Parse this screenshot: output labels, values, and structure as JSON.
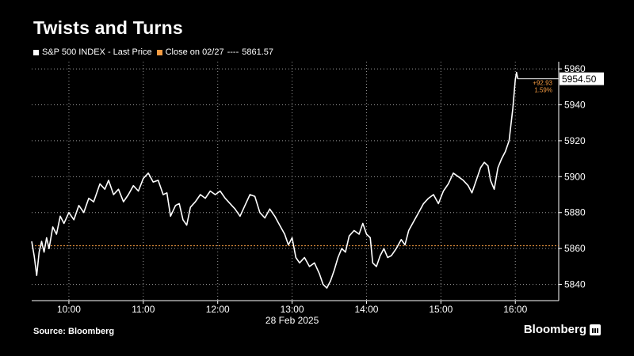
{
  "title": "Twists and Turns",
  "legend": {
    "series_label": "S&P 500 INDEX - Last Price",
    "ref_label": "Close on 02/27",
    "ref_value_label": "5861.57",
    "separator": "----"
  },
  "source": "Source: Bloomberg",
  "brand": "Bloomberg",
  "colors": {
    "background": "#000000",
    "series": "#ffffff",
    "reference": "#f59b42",
    "grid": "#9a9a9a",
    "change": "#f59b42"
  },
  "chart_data": {
    "type": "line",
    "title": "Twists and Turns",
    "x_ticks": [
      "10:00",
      "11:00",
      "12:00",
      "13:00",
      "14:00",
      "15:00",
      "16:00"
    ],
    "x_caption": "28 Feb 2025",
    "xlim": [
      "09:30",
      "16:35"
    ],
    "y_ticks": [
      5840,
      5860,
      5880,
      5900,
      5920,
      5940,
      5960
    ],
    "ylim": [
      5831,
      5964
    ],
    "grid": true,
    "y_axis_side": "right",
    "reference_line": {
      "name": "Close on 02/27",
      "value": 5861.57
    },
    "last_value_label": "5954.50",
    "change_label": "+92.93",
    "change_pct_label": "1.59%",
    "series": [
      {
        "name": "S&P 500 INDEX - Last Price",
        "points": [
          [
            "09:30",
            5864
          ],
          [
            "09:32",
            5856
          ],
          [
            "09:34",
            5845
          ],
          [
            "09:36",
            5858
          ],
          [
            "09:38",
            5864
          ],
          [
            "09:40",
            5858
          ],
          [
            "09:42",
            5866
          ],
          [
            "09:44",
            5860
          ],
          [
            "09:47",
            5872
          ],
          [
            "09:50",
            5868
          ],
          [
            "09:53",
            5878
          ],
          [
            "09:56",
            5874
          ],
          [
            "10:00",
            5880
          ],
          [
            "10:04",
            5876
          ],
          [
            "10:08",
            5884
          ],
          [
            "10:12",
            5880
          ],
          [
            "10:16",
            5888
          ],
          [
            "10:20",
            5886
          ],
          [
            "10:25",
            5896
          ],
          [
            "10:29",
            5893
          ],
          [
            "10:32",
            5898
          ],
          [
            "10:36",
            5890
          ],
          [
            "10:40",
            5893
          ],
          [
            "10:44",
            5886
          ],
          [
            "10:48",
            5890
          ],
          [
            "10:52",
            5895
          ],
          [
            "10:56",
            5892
          ],
          [
            "11:00",
            5899
          ],
          [
            "11:04",
            5902
          ],
          [
            "11:08",
            5897
          ],
          [
            "11:12",
            5898
          ],
          [
            "11:16",
            5890
          ],
          [
            "11:19",
            5891
          ],
          [
            "11:22",
            5878
          ],
          [
            "11:26",
            5884
          ],
          [
            "11:29",
            5885
          ],
          [
            "11:32",
            5876
          ],
          [
            "11:35",
            5873
          ],
          [
            "11:38",
            5883
          ],
          [
            "11:42",
            5886
          ],
          [
            "11:46",
            5890
          ],
          [
            "11:50",
            5888
          ],
          [
            "11:54",
            5892
          ],
          [
            "11:58",
            5890
          ],
          [
            "12:02",
            5892
          ],
          [
            "12:06",
            5888
          ],
          [
            "12:10",
            5885
          ],
          [
            "12:14",
            5882
          ],
          [
            "12:18",
            5878
          ],
          [
            "12:22",
            5884
          ],
          [
            "12:26",
            5890
          ],
          [
            "12:30",
            5889
          ],
          [
            "12:34",
            5880
          ],
          [
            "12:38",
            5877
          ],
          [
            "12:42",
            5882
          ],
          [
            "12:46",
            5878
          ],
          [
            "12:50",
            5873
          ],
          [
            "12:54",
            5868
          ],
          [
            "12:57",
            5862
          ],
          [
            "13:00",
            5866
          ],
          [
            "13:03",
            5855
          ],
          [
            "13:06",
            5852
          ],
          [
            "13:10",
            5855
          ],
          [
            "13:14",
            5850
          ],
          [
            "13:18",
            5852
          ],
          [
            "13:22",
            5846
          ],
          [
            "13:25",
            5840
          ],
          [
            "13:28",
            5838
          ],
          [
            "13:31",
            5842
          ],
          [
            "13:34",
            5848
          ],
          [
            "13:37",
            5855
          ],
          [
            "13:40",
            5860
          ],
          [
            "13:43",
            5858
          ],
          [
            "13:46",
            5867
          ],
          [
            "13:50",
            5870
          ],
          [
            "13:54",
            5868
          ],
          [
            "13:57",
            5874
          ],
          [
            "14:00",
            5868
          ],
          [
            "14:03",
            5866
          ],
          [
            "14:05",
            5852
          ],
          [
            "14:08",
            5850
          ],
          [
            "14:11",
            5856
          ],
          [
            "14:14",
            5860
          ],
          [
            "14:17",
            5855
          ],
          [
            "14:20",
            5856
          ],
          [
            "14:24",
            5860
          ],
          [
            "14:28",
            5865
          ],
          [
            "14:31",
            5862
          ],
          [
            "14:34",
            5870
          ],
          [
            "14:38",
            5875
          ],
          [
            "14:42",
            5880
          ],
          [
            "14:46",
            5885
          ],
          [
            "14:50",
            5888
          ],
          [
            "14:54",
            5890
          ],
          [
            "14:58",
            5885
          ],
          [
            "15:02",
            5892
          ],
          [
            "15:06",
            5896
          ],
          [
            "15:10",
            5902
          ],
          [
            "15:14",
            5900
          ],
          [
            "15:18",
            5898
          ],
          [
            "15:22",
            5895
          ],
          [
            "15:25",
            5891
          ],
          [
            "15:28",
            5897
          ],
          [
            "15:32",
            5905
          ],
          [
            "15:35",
            5908
          ],
          [
            "15:38",
            5906
          ],
          [
            "15:40",
            5898
          ],
          [
            "15:43",
            5893
          ],
          [
            "15:46",
            5905
          ],
          [
            "15:49",
            5910
          ],
          [
            "15:52",
            5914
          ],
          [
            "15:55",
            5920
          ],
          [
            "15:58",
            5938
          ],
          [
            "16:00",
            5954
          ],
          [
            "16:01",
            5958
          ],
          [
            "16:02",
            5954.5
          ]
        ]
      }
    ]
  }
}
